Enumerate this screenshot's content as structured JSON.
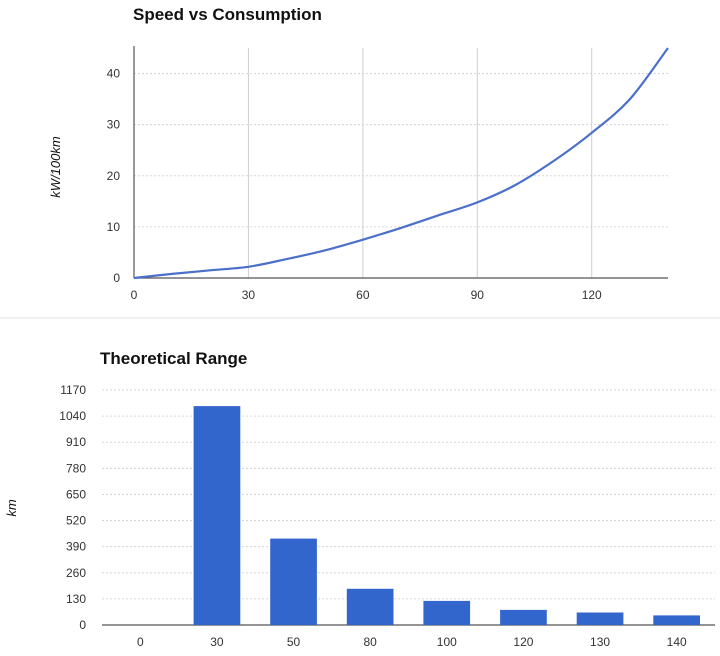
{
  "chart_data": [
    {
      "type": "line",
      "title": "Speed vs Consumption",
      "xlabel": "",
      "ylabel": "kW/100km",
      "xlim": [
        0,
        140
      ],
      "ylim": [
        0,
        45
      ],
      "x_ticks": [
        0,
        30,
        60,
        90,
        120
      ],
      "y_ticks": [
        0,
        10,
        20,
        30,
        40
      ],
      "color": "#4a70c9",
      "series": [
        {
          "x": [
            0,
            10,
            20,
            30,
            40,
            50,
            60,
            70,
            80,
            90,
            100,
            110,
            120,
            130,
            140
          ],
          "y": [
            0,
            0.8,
            1.5,
            2.2,
            3.7,
            5.4,
            7.5,
            9.8,
            12.3,
            14.8,
            18.2,
            22.9,
            28.4,
            35.0,
            45.0
          ]
        }
      ]
    },
    {
      "type": "bar",
      "title": "Theoretical Range",
      "xlabel": "",
      "ylabel": "km",
      "ylim": [
        0,
        1170
      ],
      "y_ticks": [
        0,
        130,
        260,
        390,
        520,
        650,
        780,
        910,
        1040,
        1170
      ],
      "categories": [
        "0",
        "30",
        "50",
        "80",
        "100",
        "120",
        "130",
        "140"
      ],
      "values": [
        0,
        1090,
        430,
        180,
        120,
        75,
        62,
        48
      ],
      "color": "#3366cc"
    }
  ]
}
